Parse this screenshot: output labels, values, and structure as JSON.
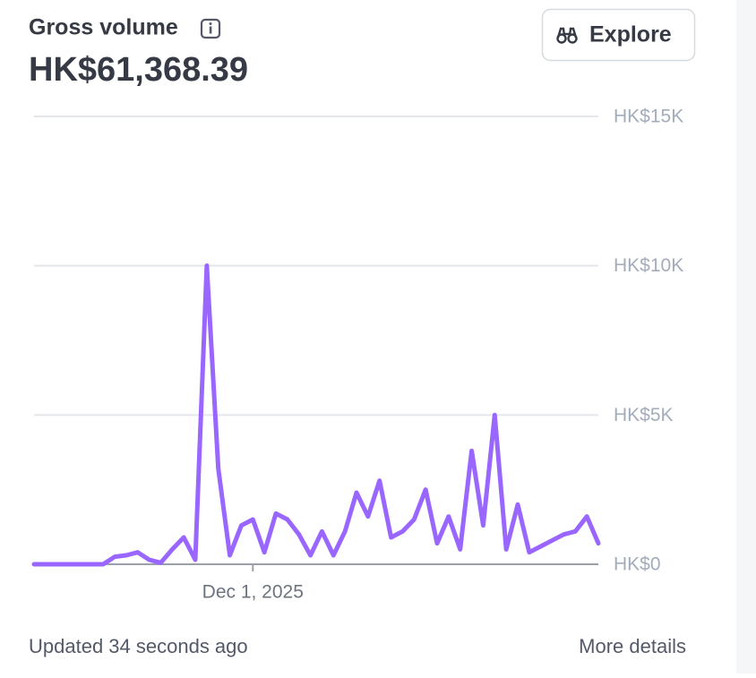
{
  "header": {
    "title": "Gross volume",
    "total": "HK$61,368.39",
    "button": "Explore"
  },
  "chart_data": {
    "type": "line",
    "categories": [
      null,
      null,
      null,
      null,
      null,
      null,
      null,
      null,
      null,
      null,
      null,
      null,
      null,
      null,
      null,
      null,
      null,
      null,
      null,
      "Dec 1, 2025",
      null,
      null,
      null,
      null,
      null,
      null,
      null,
      null,
      null,
      null,
      null,
      null,
      null,
      null,
      null,
      null,
      null,
      null,
      null,
      null,
      null,
      null,
      null,
      null,
      null,
      null,
      null,
      null,
      null,
      null
    ],
    "series": [
      {
        "name": "Gross volume",
        "color": "#9966ff",
        "values": [
          0,
          0,
          0,
          0,
          0,
          0,
          0,
          250,
          300,
          400,
          150,
          50,
          500,
          900,
          150,
          10000,
          3200,
          300,
          1300,
          1500,
          400,
          1700,
          1500,
          1000,
          300,
          1100,
          300,
          1100,
          2400,
          1600,
          2800,
          900,
          1100,
          1500,
          2500,
          700,
          1600,
          500,
          3800,
          1300,
          5000,
          500,
          2000,
          400,
          600,
          800,
          1000,
          1100,
          1600,
          700
        ]
      }
    ],
    "ylim": [
      0,
      15000
    ],
    "yticks": [
      {
        "value": 0,
        "label": "HK$0"
      },
      {
        "value": 5000,
        "label": "HK$5K"
      },
      {
        "value": 10000,
        "label": "HK$10K"
      },
      {
        "value": 15000,
        "label": "HK$15K"
      }
    ],
    "grid": true
  },
  "footer": {
    "updated": "Updated 34 seconds ago",
    "more": "More details"
  }
}
